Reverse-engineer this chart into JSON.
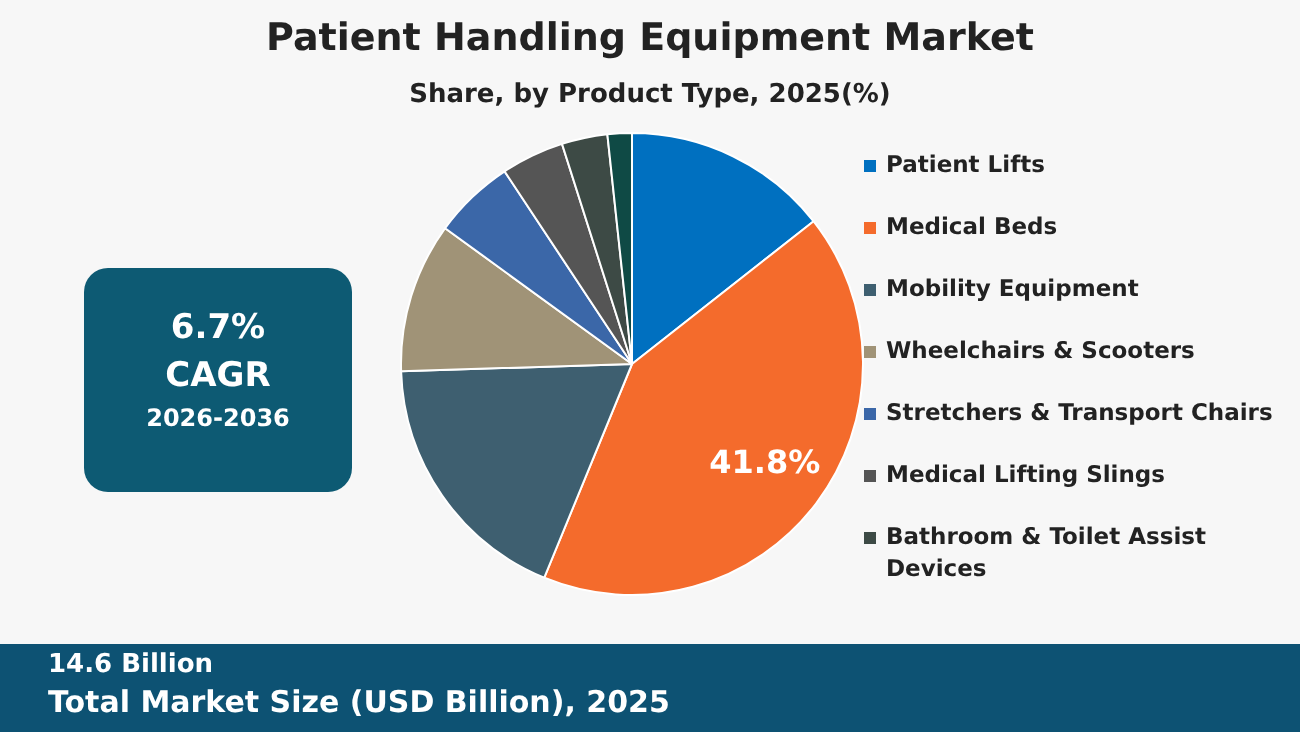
{
  "chart_data": {
    "type": "pie",
    "title": "Patient Handling Equipment Market",
    "subtitle": "Share, by Product Type, 2025(%)",
    "categories": [
      "Patient Lifts",
      "Medical Beds",
      "Mobility Equipment",
      "Wheelchairs & Scooters",
      "Stretchers & Transport Chairs",
      "Medical Lifting Slings",
      "Bathroom & Toilet Assist Devices",
      null
    ],
    "values": [
      14.4,
      41.8,
      18.3,
      10.5,
      5.7,
      4.4,
      3.2,
      1.7
    ],
    "colors": [
      "#0070c0",
      "#f46b2c",
      "#3e5f70",
      "#a09377",
      "#3b67a8",
      "#555555",
      "#3d4a45",
      "#0f4a45"
    ],
    "value_labels": [
      null,
      "41.8%",
      null,
      null,
      null,
      null,
      null,
      null
    ],
    "legend": "right",
    "annotations": [
      "6.7%",
      "CAGR",
      "2026-2036",
      "14.6 Billion",
      "Total Market Size (USD Billion), 2025"
    ]
  }
}
